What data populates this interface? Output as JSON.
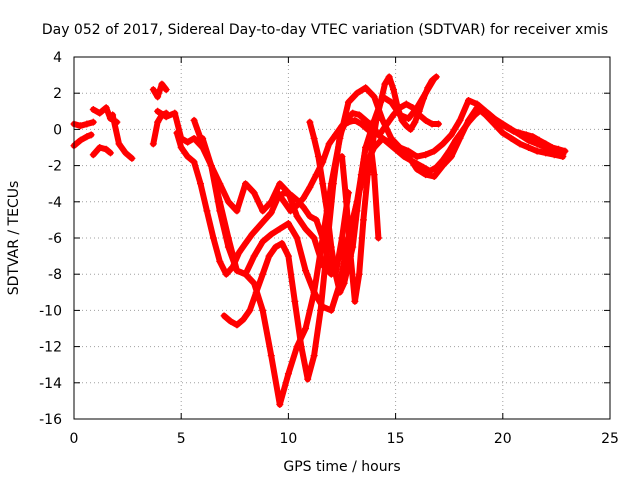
{
  "chart_data": {
    "type": "scatter",
    "title": "Day 052 of 2017, Sidereal Day-to-day VTEC variation (SDTVAR) for receiver xmis",
    "xlabel": "GPS time / hours",
    "ylabel": "SDTVAR / TECUs",
    "xlim": [
      0,
      25
    ],
    "ylim": [
      -16,
      4
    ],
    "xticks": [
      0,
      5,
      10,
      15,
      20,
      25
    ],
    "yticks": [
      -16,
      -14,
      -12,
      -10,
      -8,
      -6,
      -4,
      -2,
      0,
      2,
      4
    ],
    "grid": true,
    "marker": "+",
    "color": "#ff0000",
    "series": [
      {
        "x": [
          0.0,
          0.3,
          0.6,
          0.9
        ],
        "y": [
          0.3,
          0.2,
          0.3,
          0.4
        ]
      },
      {
        "x": [
          0.0,
          0.3,
          0.6,
          0.8
        ],
        "y": [
          -0.9,
          -0.6,
          -0.4,
          -0.3
        ]
      },
      {
        "x": [
          0.9,
          1.2,
          1.5,
          1.7,
          2.0
        ],
        "y": [
          1.1,
          0.9,
          1.2,
          0.6,
          0.4
        ]
      },
      {
        "x": [
          0.9,
          1.2,
          1.5,
          1.7
        ],
        "y": [
          -1.4,
          -1.0,
          -1.1,
          -1.3
        ]
      },
      {
        "x": [
          1.8,
          2.1,
          2.4,
          2.7
        ],
        "y": [
          0.8,
          -0.8,
          -1.3,
          -1.6
        ]
      },
      {
        "x": [
          3.7,
          3.9,
          4.1,
          4.3
        ],
        "y": [
          2.2,
          1.8,
          2.5,
          2.2
        ]
      },
      {
        "x": [
          3.7,
          3.9,
          4.1,
          4.3
        ],
        "y": [
          -0.8,
          0.4,
          0.8,
          0.9
        ]
      },
      {
        "x": [
          3.9,
          4.3,
          4.7,
          5.0,
          5.3,
          5.6,
          6.0,
          6.4,
          6.8,
          7.2,
          7.6,
          8.0,
          8.4,
          8.8,
          9.2,
          9.6,
          10.0,
          10.4,
          10.8,
          11.2,
          11.6,
          12.0,
          12.4,
          12.8,
          13.2,
          13.6,
          14.0,
          14.4,
          14.8,
          15.2,
          15.6,
          16.0,
          16.4,
          16.8
        ],
        "y": [
          1.0,
          0.7,
          0.9,
          -0.5,
          -0.7,
          -0.5,
          -1.0,
          -2.0,
          -3.0,
          -4.0,
          -4.5,
          -3.0,
          -3.5,
          -4.5,
          -4.0,
          -3.0,
          -3.5,
          -4.8,
          -5.5,
          -6.0,
          -7.5,
          -8.0,
          -7.0,
          -6.0,
          -4.0,
          -1.0,
          0.5,
          1.8,
          1.5,
          0.8,
          0.6,
          1.2,
          2.0,
          2.8
        ]
      },
      {
        "x": [
          4.8,
          5.0,
          5.3,
          5.6,
          5.9,
          6.2,
          6.5,
          6.8,
          7.1,
          7.4,
          7.7,
          8.0,
          8.3,
          8.6,
          8.9,
          9.2,
          9.5,
          9.8,
          10.1,
          10.4,
          10.7,
          11.0,
          11.3,
          11.6,
          11.9,
          12.2,
          12.5,
          12.8
        ],
        "y": [
          -0.2,
          -1.0,
          -1.5,
          -1.8,
          -3.0,
          -4.5,
          -6.0,
          -7.3,
          -8.0,
          -7.6,
          -6.8,
          -6.3,
          -5.8,
          -5.4,
          -5.0,
          -4.6,
          -3.8,
          -3.5,
          -3.6,
          -3.9,
          -4.3,
          -4.8,
          -5.0,
          -6.0,
          -7.5,
          -8.0,
          -6.0,
          -3.5
        ]
      },
      {
        "x": [
          5.6,
          6.0,
          6.4,
          6.8,
          7.2,
          7.6,
          8.0,
          8.4,
          8.8,
          9.2,
          9.6,
          10.0,
          10.4,
          10.8,
          11.2,
          11.6,
          12.0,
          12.4,
          12.8,
          13.2,
          13.6,
          14.0,
          14.4,
          14.8,
          15.2,
          15.6,
          16.0,
          16.4,
          16.8,
          17.2,
          17.6,
          18.0,
          18.4,
          18.8,
          19.2,
          19.6,
          20.0,
          20.4,
          20.8,
          21.2,
          21.6,
          22.0,
          22.4,
          22.8
        ],
        "y": [
          0.5,
          -0.8,
          -2.0,
          -4.0,
          -6.0,
          -7.8,
          -8.0,
          -7.0,
          -6.2,
          -5.8,
          -5.5,
          -5.2,
          -6.0,
          -7.8,
          -9.0,
          -9.8,
          -10.0,
          -8.5,
          -6.0,
          -4.0,
          -2.0,
          -1.0,
          -0.5,
          -0.8,
          -1.0,
          -1.5,
          -2.2,
          -2.5,
          -2.6,
          -2.0,
          -1.5,
          -0.5,
          0.5,
          1.2,
          0.8,
          0.3,
          -0.2,
          -0.5,
          -0.8,
          -1.0,
          -1.2,
          -1.3,
          -1.4,
          -1.5
        ]
      },
      {
        "x": [
          6.0,
          6.4,
          6.8,
          7.2,
          7.6,
          8.0,
          8.4,
          8.8,
          9.2,
          9.6,
          10.0,
          10.4,
          10.8,
          11.2,
          11.6,
          12.0,
          12.4,
          12.8,
          13.2,
          13.6,
          14.0,
          14.4,
          14.8,
          15.2,
          15.6,
          16.0,
          16.4,
          16.8,
          17.2,
          17.6,
          18.0,
          18.4,
          18.8,
          19.2,
          19.6,
          20.0,
          20.4,
          20.8,
          21.2,
          21.6,
          22.0,
          22.4,
          22.8
        ],
        "y": [
          -0.5,
          -2.0,
          -4.5,
          -6.5,
          -7.8,
          -8.0,
          -8.5,
          -10.0,
          -12.5,
          -15.2,
          -13.5,
          -12.0,
          -11.0,
          -9.0,
          -6.0,
          -3.0,
          -0.5,
          1.5,
          2.0,
          2.3,
          1.8,
          0.5,
          -0.5,
          -1.0,
          -1.2,
          -1.5,
          -1.4,
          -1.2,
          -0.8,
          -0.3,
          0.5,
          1.6,
          1.4,
          1.0,
          0.6,
          0.3,
          0.0,
          -0.3,
          -0.6,
          -0.8,
          -1.0,
          -1.2,
          -1.4
        ]
      },
      {
        "x": [
          7.0,
          7.3,
          7.6,
          7.9,
          8.2,
          8.5,
          8.8,
          9.1,
          9.4,
          9.7,
          10.0,
          10.3,
          10.6,
          10.9,
          11.2,
          11.5,
          11.8,
          12.1,
          12.4,
          12.7,
          13.0,
          13.3,
          13.6,
          13.9,
          14.2,
          14.5,
          14.8,
          15.1,
          15.4,
          15.7,
          16.0,
          16.3,
          16.6,
          16.9,
          17.2,
          17.5,
          17.8,
          18.1,
          18.4,
          18.7,
          19.0,
          19.3,
          19.6,
          19.9,
          20.2,
          20.5,
          20.8,
          21.1,
          21.4,
          21.7,
          22.0,
          22.3,
          22.6,
          22.9
        ],
        "y": [
          -10.3,
          -10.6,
          -10.8,
          -10.5,
          -10.0,
          -9.0,
          -8.0,
          -7.0,
          -6.5,
          -6.3,
          -7.0,
          -9.5,
          -12.0,
          -13.8,
          -12.5,
          -10.0,
          -6.5,
          -3.0,
          -0.3,
          0.5,
          0.9,
          0.8,
          0.5,
          0.2,
          -0.3,
          -0.6,
          -0.9,
          -1.2,
          -1.5,
          -1.7,
          -1.9,
          -2.1,
          -2.3,
          -2.1,
          -1.7,
          -1.2,
          -0.6,
          -0.1,
          0.4,
          0.8,
          1.1,
          0.9,
          0.6,
          0.3,
          0.1,
          -0.1,
          -0.2,
          -0.3,
          -0.4,
          -0.6,
          -0.8,
          -1.0,
          -1.1,
          -1.2
        ]
      },
      {
        "x": [
          9.5,
          9.8,
          10.1,
          10.4,
          10.7,
          11.0,
          11.3,
          11.6,
          11.9,
          12.2,
          12.5,
          12.8,
          13.1,
          13.4,
          13.7,
          14.0,
          14.3,
          14.6,
          14.9,
          15.2,
          15.5,
          15.8,
          16.1,
          16.4,
          16.7,
          17.0
        ],
        "y": [
          -3.5,
          -4.0,
          -4.5,
          -4.2,
          -3.8,
          -3.2,
          -2.5,
          -1.8,
          -0.8,
          -0.3,
          0.2,
          0.4,
          0.5,
          0.3,
          0.0,
          -0.3,
          -0.2,
          0.3,
          0.8,
          1.2,
          1.4,
          1.2,
          0.8,
          0.5,
          0.3,
          0.3
        ]
      },
      {
        "x": [
          11.0,
          11.2,
          11.4,
          11.6,
          11.8,
          12.0,
          12.2,
          12.4,
          12.6,
          12.8,
          13.0,
          13.2,
          13.4,
          13.6,
          13.8,
          14.0,
          14.2
        ],
        "y": [
          0.4,
          -0.5,
          -1.5,
          -3.0,
          -4.5,
          -6.5,
          -8.0,
          -9.0,
          -8.5,
          -7.5,
          -6.5,
          -4.5,
          -2.5,
          -1.0,
          -0.5,
          -2.5,
          -6.0
        ]
      },
      {
        "x": [
          12.5,
          12.7,
          12.9,
          13.1,
          13.3,
          13.5,
          13.7,
          13.9,
          14.1,
          14.3,
          14.5,
          14.7,
          14.9,
          15.1,
          15.3,
          15.5,
          15.7,
          15.9,
          16.1,
          16.3,
          16.5,
          16.7,
          16.9
        ],
        "y": [
          -1.5,
          -4.0,
          -7.0,
          -9.5,
          -8.0,
          -5.0,
          -2.5,
          -1.0,
          0.5,
          1.5,
          2.5,
          2.9,
          2.2,
          1.2,
          0.5,
          0.2,
          0.0,
          0.4,
          1.0,
          1.7,
          2.3,
          2.7,
          2.9
        ]
      }
    ]
  }
}
